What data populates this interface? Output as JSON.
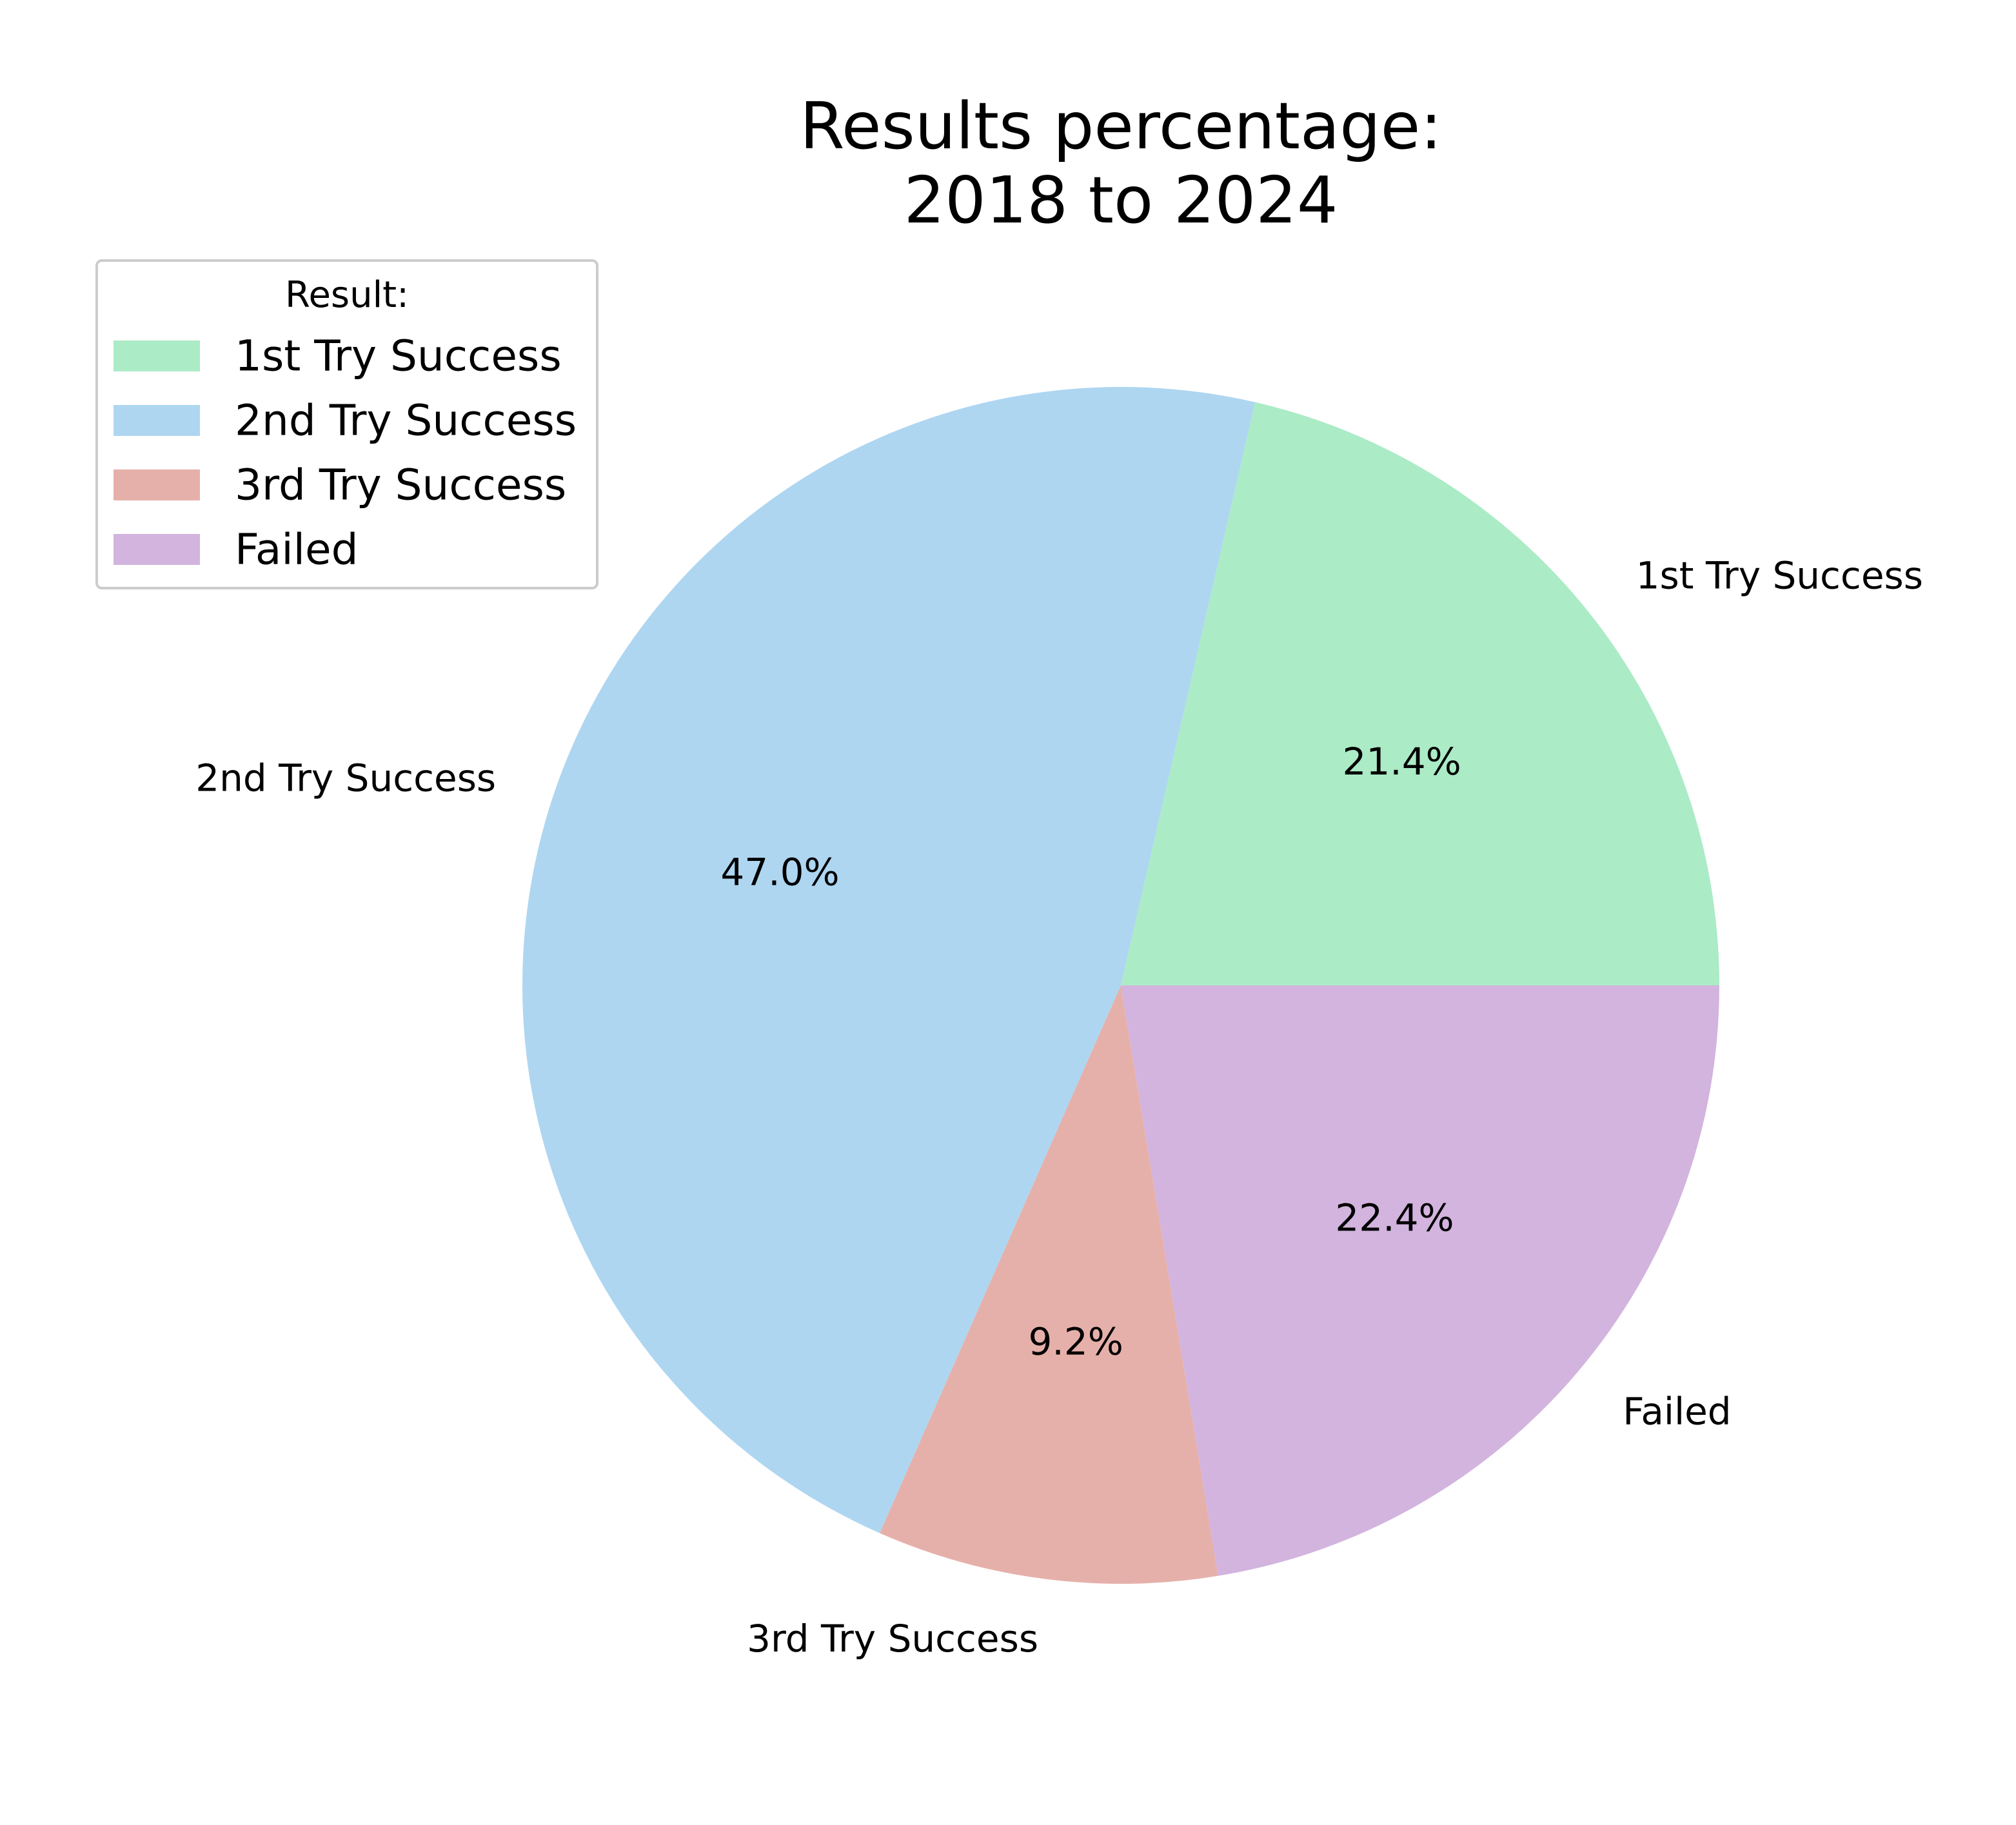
{
  "chart_data": {
    "type": "pie",
    "title_lines": [
      "Results percentage:",
      "2018 to 2024"
    ],
    "categories": [
      "1st Try Success",
      "2nd Try Success",
      "3rd Try Success",
      "Failed"
    ],
    "values": [
      21.4,
      47.0,
      9.2,
      22.4
    ],
    "value_labels": [
      "21.4%",
      "47.0%",
      "9.2%",
      "22.4%"
    ],
    "colors": [
      "#abebc6",
      "#aed6f1",
      "#e6b0aa",
      "#d2b4de"
    ],
    "start_angle_deg": 0,
    "direction": "counterclockwise",
    "legend": {
      "title": "Result:",
      "placement": "upper-left",
      "entries": [
        "1st Try Success",
        "2nd Try Success",
        "3rd Try Success",
        "Failed"
      ]
    }
  }
}
